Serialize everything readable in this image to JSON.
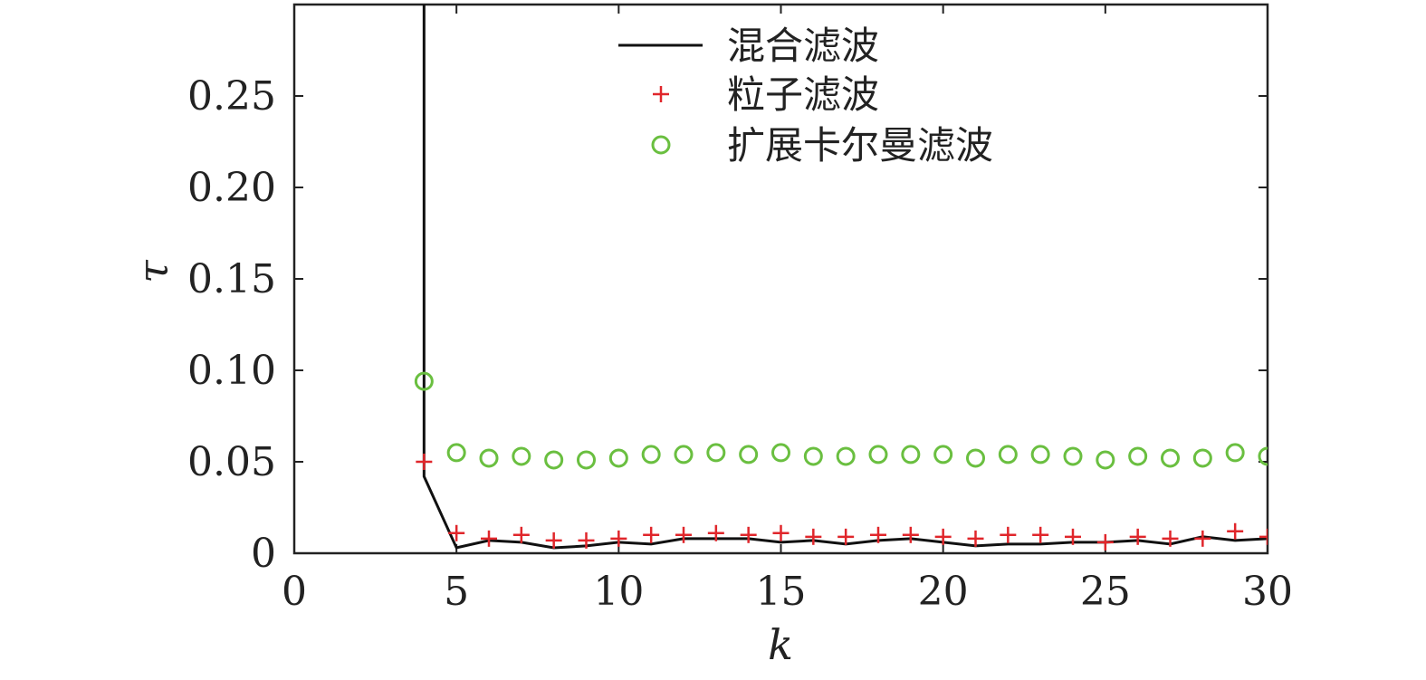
{
  "chart_data": {
    "type": "line",
    "xlabel": "k",
    "ylabel": "τ",
    "xlim": [
      0,
      30
    ],
    "ylim": [
      0,
      0.3
    ],
    "x_ticks": [
      "0",
      "5",
      "10",
      "15",
      "20",
      "25",
      "30"
    ],
    "y_ticks": [
      "0",
      "0.05",
      "0.10",
      "0.15",
      "0.20",
      "0.25"
    ],
    "grid": false,
    "legend_position": "top-center",
    "series": [
      {
        "name": "混合滤波",
        "style": "line",
        "color": "#111111",
        "x": [
          4,
          4,
          5,
          6,
          7,
          8,
          9,
          10,
          11,
          12,
          13,
          14,
          15,
          16,
          17,
          18,
          19,
          20,
          21,
          22,
          23,
          24,
          25,
          26,
          27,
          28,
          29,
          30
        ],
        "y": [
          0.3,
          0.042,
          0.003,
          0.007,
          0.006,
          0.003,
          0.004,
          0.006,
          0.005,
          0.008,
          0.008,
          0.008,
          0.006,
          0.007,
          0.005,
          0.007,
          0.008,
          0.006,
          0.004,
          0.005,
          0.005,
          0.006,
          0.006,
          0.007,
          0.005,
          0.009,
          0.007,
          0.008
        ]
      },
      {
        "name": "粒子滤波",
        "style": "plus",
        "color": "#e0262b",
        "x": [
          4,
          5,
          6,
          7,
          8,
          9,
          10,
          11,
          12,
          13,
          14,
          15,
          16,
          17,
          18,
          19,
          20,
          21,
          22,
          23,
          24,
          25,
          26,
          27,
          28,
          29,
          30
        ],
        "y": [
          0.05,
          0.011,
          0.008,
          0.01,
          0.007,
          0.007,
          0.008,
          0.01,
          0.01,
          0.011,
          0.01,
          0.011,
          0.009,
          0.009,
          0.01,
          0.01,
          0.009,
          0.008,
          0.01,
          0.01,
          0.009,
          0.006,
          0.009,
          0.008,
          0.008,
          0.012,
          0.009
        ]
      },
      {
        "name": "扩展卡尔曼滤波",
        "style": "circle",
        "color": "#6abf40",
        "x": [
          4,
          5,
          6,
          7,
          8,
          9,
          10,
          11,
          12,
          13,
          14,
          15,
          16,
          17,
          18,
          19,
          20,
          21,
          22,
          23,
          24,
          25,
          26,
          27,
          28,
          29,
          30
        ],
        "y": [
          0.094,
          0.055,
          0.052,
          0.053,
          0.051,
          0.051,
          0.052,
          0.054,
          0.054,
          0.055,
          0.054,
          0.055,
          0.053,
          0.053,
          0.054,
          0.054,
          0.054,
          0.052,
          0.054,
          0.054,
          0.053,
          0.051,
          0.053,
          0.052,
          0.052,
          0.055,
          0.053
        ]
      }
    ]
  }
}
